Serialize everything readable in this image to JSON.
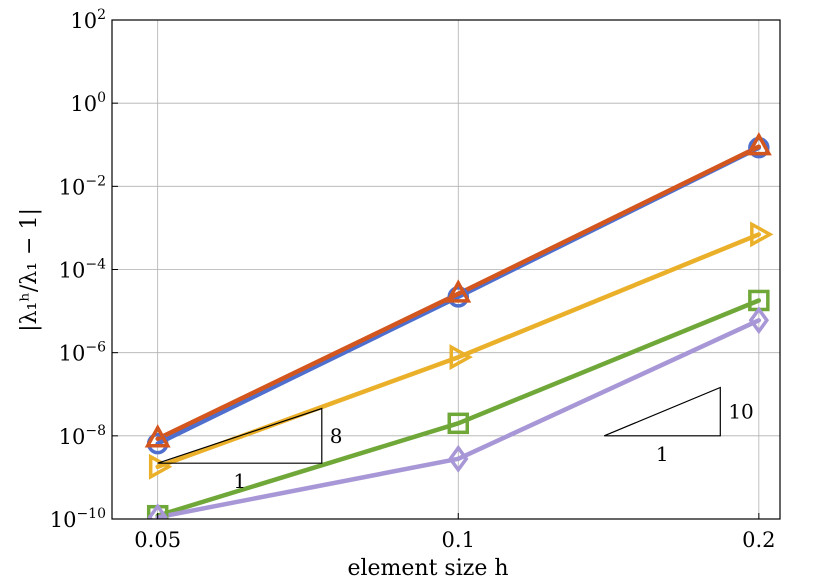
{
  "chart_data": {
    "type": "line",
    "title": "",
    "xlabel": "element size h",
    "ylabel": "|λ₁ʰ/λ₁ − 1|",
    "x_scale": "log",
    "y_scale": "log",
    "xlim": [
      0.045,
      0.21
    ],
    "ylim": [
      1e-10,
      100
    ],
    "grid": true,
    "x_ticks": [
      {
        "value": 0.05,
        "label": "0.05"
      },
      {
        "value": 0.1,
        "label": "0.1"
      },
      {
        "value": 0.2,
        "label": "0.2"
      }
    ],
    "y_ticks": [
      {
        "value": 1e-10,
        "base": "10",
        "exp": "−10"
      },
      {
        "value": 1e-08,
        "base": "10",
        "exp": "−8"
      },
      {
        "value": 1e-06,
        "base": "10",
        "exp": "−6"
      },
      {
        "value": 0.0001,
        "base": "10",
        "exp": "−4"
      },
      {
        "value": 0.01,
        "base": "10",
        "exp": "−2"
      },
      {
        "value": 1,
        "base": "10",
        "exp": "0"
      },
      {
        "value": 100,
        "base": "10",
        "exp": "2"
      }
    ],
    "x": [
      0.05,
      0.1,
      0.2
    ],
    "series": [
      {
        "marker": "circle",
        "color": "#4f6fce",
        "values": [
          6.5e-09,
          2.2e-05,
          0.085
        ]
      },
      {
        "marker": "triangle-up",
        "color": "#d2561e",
        "values": [
          8.5e-09,
          2.6e-05,
          0.09
        ]
      },
      {
        "marker": "triangle-right",
        "color": "#ebb02a",
        "values": [
          1.8e-09,
          7.8e-07,
          0.0007
        ]
      },
      {
        "marker": "square",
        "color": "#6fa839",
        "values": [
          1.2e-10,
          2e-08,
          1.8e-05
        ]
      },
      {
        "marker": "diamond",
        "color": "#a897d6",
        "values": [
          1.1e-10,
          2.8e-09,
          6e-06
        ]
      }
    ],
    "slope_triangles": [
      {
        "x_start": 0.05,
        "x_end": 0.073,
        "y_bottom": 2.2e-09,
        "run_label": "1",
        "rise_label": "8"
      },
      {
        "x_start": 0.14,
        "x_end": 0.183,
        "y_bottom": 1e-08,
        "run_label": "1",
        "rise_label": "10"
      }
    ]
  }
}
